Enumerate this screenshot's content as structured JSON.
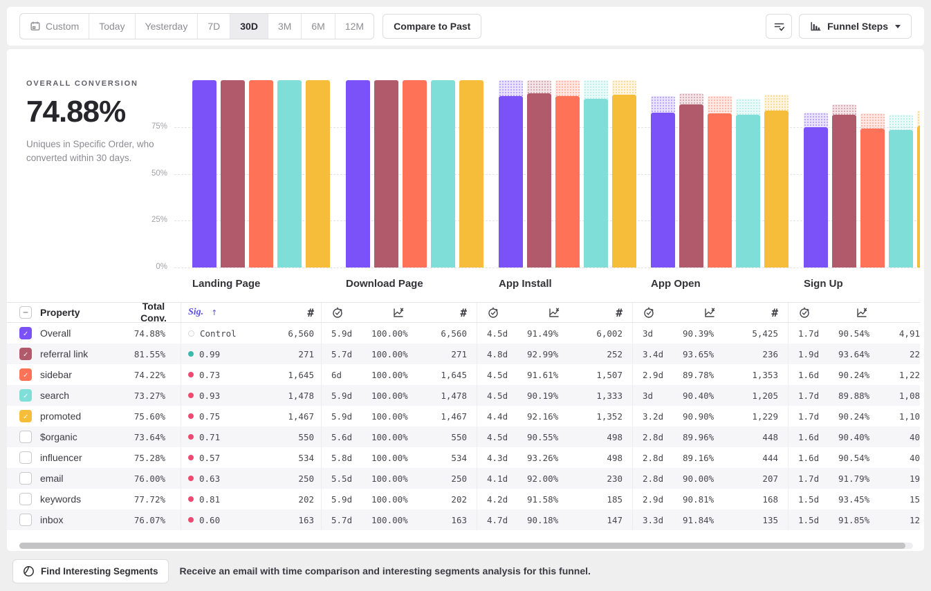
{
  "toolbar": {
    "date_ranges": [
      "Custom",
      "Today",
      "Yesterday",
      "7D",
      "30D",
      "3M",
      "6M",
      "12M"
    ],
    "selected_range": "30D",
    "compare_label": "Compare to Past",
    "view_label": "Funnel Steps"
  },
  "summary": {
    "label": "OVERALL CONVERSION",
    "value": "74.88%",
    "description": "Uniques in Specific Order, who converted within 30 days."
  },
  "chart_data": {
    "type": "bar",
    "categories": [
      "Landing Page",
      "Download Page",
      "App Install",
      "App Open",
      "Sign Up"
    ],
    "series": [
      {
        "name": "Overall",
        "color": "#7b52f7",
        "values": [
          100,
          100,
          91.49,
          82.7,
          74.88
        ]
      },
      {
        "name": "referral link",
        "color": "#b05a6b",
        "values": [
          100,
          100,
          92.99,
          87.08,
          81.55
        ]
      },
      {
        "name": "sidebar",
        "color": "#fe7358",
        "values": [
          100,
          100,
          91.61,
          82.25,
          74.22
        ]
      },
      {
        "name": "search",
        "color": "#7fdfd8",
        "values": [
          100,
          100,
          90.19,
          81.53,
          73.27
        ]
      },
      {
        "name": "promoted",
        "color": "#f6bd3b",
        "values": [
          100,
          100,
          92.16,
          83.77,
          75.6
        ]
      }
    ],
    "ylabel": "",
    "yticks": [
      "75%",
      "50%",
      "25%",
      "0%"
    ],
    "ylim": [
      0,
      100
    ],
    "grid": true,
    "legend_position": "none",
    "note": "hatched light caps above bars show drop-off from previous step"
  },
  "table": {
    "property_header": "Property",
    "total_header": "Total Conv.",
    "sig_header": "Sig.",
    "sort_arrow": "↑",
    "count_symbol": "#",
    "dot_colors": {
      "control": "#d6d6da",
      "teal": "#3cb8ad",
      "pink": "#ee4a70"
    },
    "rows": [
      {
        "name": "Overall",
        "checked": true,
        "color": "#7b52f7",
        "total": "74.88%",
        "sig": "Control",
        "sig_dot": "control",
        "steps": [
          {
            "time": "",
            "rate": "",
            "count": "6,560"
          },
          {
            "time": "5.9d",
            "rate": "100.00%",
            "count": "6,560"
          },
          {
            "time": "4.5d",
            "rate": "91.49%",
            "count": "6,002"
          },
          {
            "time": "3d",
            "rate": "90.39%",
            "count": "5,425"
          },
          {
            "time": "1.7d",
            "rate": "90.54%",
            "count": "4,91"
          }
        ]
      },
      {
        "name": "referral link",
        "checked": true,
        "color": "#b05a6b",
        "total": "81.55%",
        "sig": "0.99",
        "sig_dot": "teal",
        "steps": [
          {
            "time": "",
            "rate": "",
            "count": "271"
          },
          {
            "time": "5.7d",
            "rate": "100.00%",
            "count": "271"
          },
          {
            "time": "4.8d",
            "rate": "92.99%",
            "count": "252"
          },
          {
            "time": "3.4d",
            "rate": "93.65%",
            "count": "236"
          },
          {
            "time": "1.9d",
            "rate": "93.64%",
            "count": "22"
          }
        ]
      },
      {
        "name": "sidebar",
        "checked": true,
        "color": "#fe7358",
        "total": "74.22%",
        "sig": "0.73",
        "sig_dot": "pink",
        "steps": [
          {
            "time": "",
            "rate": "",
            "count": "1,645"
          },
          {
            "time": "6d",
            "rate": "100.00%",
            "count": "1,645"
          },
          {
            "time": "4.5d",
            "rate": "91.61%",
            "count": "1,507"
          },
          {
            "time": "2.9d",
            "rate": "89.78%",
            "count": "1,353"
          },
          {
            "time": "1.6d",
            "rate": "90.24%",
            "count": "1,22"
          }
        ]
      },
      {
        "name": "search",
        "checked": true,
        "color": "#7fdfd8",
        "total": "73.27%",
        "sig": "0.93",
        "sig_dot": "pink",
        "steps": [
          {
            "time": "",
            "rate": "",
            "count": "1,478"
          },
          {
            "time": "5.9d",
            "rate": "100.00%",
            "count": "1,478"
          },
          {
            "time": "4.5d",
            "rate": "90.19%",
            "count": "1,333"
          },
          {
            "time": "3d",
            "rate": "90.40%",
            "count": "1,205"
          },
          {
            "time": "1.7d",
            "rate": "89.88%",
            "count": "1,08"
          }
        ]
      },
      {
        "name": "promoted",
        "checked": true,
        "color": "#f6bd3b",
        "total": "75.60%",
        "sig": "0.75",
        "sig_dot": "pink",
        "steps": [
          {
            "time": "",
            "rate": "",
            "count": "1,467"
          },
          {
            "time": "5.9d",
            "rate": "100.00%",
            "count": "1,467"
          },
          {
            "time": "4.4d",
            "rate": "92.16%",
            "count": "1,352"
          },
          {
            "time": "3.2d",
            "rate": "90.90%",
            "count": "1,229"
          },
          {
            "time": "1.7d",
            "rate": "90.24%",
            "count": "1,10"
          }
        ]
      },
      {
        "name": "$organic",
        "checked": false,
        "color": "",
        "total": "73.64%",
        "sig": "0.71",
        "sig_dot": "pink",
        "steps": [
          {
            "time": "",
            "rate": "",
            "count": "550"
          },
          {
            "time": "5.6d",
            "rate": "100.00%",
            "count": "550"
          },
          {
            "time": "4.5d",
            "rate": "90.55%",
            "count": "498"
          },
          {
            "time": "2.8d",
            "rate": "89.96%",
            "count": "448"
          },
          {
            "time": "1.6d",
            "rate": "90.40%",
            "count": "40"
          }
        ]
      },
      {
        "name": "influencer",
        "checked": false,
        "color": "",
        "total": "75.28%",
        "sig": "0.57",
        "sig_dot": "pink",
        "steps": [
          {
            "time": "",
            "rate": "",
            "count": "534"
          },
          {
            "time": "5.8d",
            "rate": "100.00%",
            "count": "534"
          },
          {
            "time": "4.3d",
            "rate": "93.26%",
            "count": "498"
          },
          {
            "time": "2.8d",
            "rate": "89.16%",
            "count": "444"
          },
          {
            "time": "1.6d",
            "rate": "90.54%",
            "count": "40"
          }
        ]
      },
      {
        "name": "email",
        "checked": false,
        "color": "",
        "total": "76.00%",
        "sig": "0.63",
        "sig_dot": "pink",
        "steps": [
          {
            "time": "",
            "rate": "",
            "count": "250"
          },
          {
            "time": "5.5d",
            "rate": "100.00%",
            "count": "250"
          },
          {
            "time": "4.1d",
            "rate": "92.00%",
            "count": "230"
          },
          {
            "time": "2.8d",
            "rate": "90.00%",
            "count": "207"
          },
          {
            "time": "1.7d",
            "rate": "91.79%",
            "count": "19"
          }
        ]
      },
      {
        "name": "keywords",
        "checked": false,
        "color": "",
        "total": "77.72%",
        "sig": "0.81",
        "sig_dot": "pink",
        "steps": [
          {
            "time": "",
            "rate": "",
            "count": "202"
          },
          {
            "time": "5.9d",
            "rate": "100.00%",
            "count": "202"
          },
          {
            "time": "4.2d",
            "rate": "91.58%",
            "count": "185"
          },
          {
            "time": "2.9d",
            "rate": "90.81%",
            "count": "168"
          },
          {
            "time": "1.5d",
            "rate": "93.45%",
            "count": "15"
          }
        ]
      },
      {
        "name": "inbox",
        "checked": false,
        "color": "",
        "total": "76.07%",
        "sig": "0.60",
        "sig_dot": "pink",
        "steps": [
          {
            "time": "",
            "rate": "",
            "count": "163"
          },
          {
            "time": "5.7d",
            "rate": "100.00%",
            "count": "163"
          },
          {
            "time": "4.7d",
            "rate": "90.18%",
            "count": "147"
          },
          {
            "time": "3.3d",
            "rate": "91.84%",
            "count": "135"
          },
          {
            "time": "1.5d",
            "rate": "91.85%",
            "count": "12"
          }
        ]
      }
    ]
  },
  "footer": {
    "button": "Find Interesting Segments",
    "message": "Receive an email with time comparison and interesting segments analysis for this funnel."
  }
}
